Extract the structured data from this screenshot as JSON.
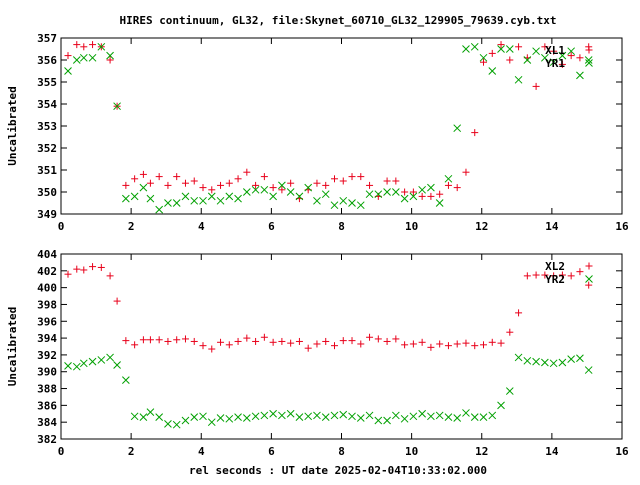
{
  "title": "HIRES continuum, GL32, file:Skynet_60710_GL32_129905_79639.cyb.txt",
  "xlabel": "rel seconds : UT date 2025-02-04T10:33:02.000",
  "colors": {
    "red": "#e8001a",
    "green": "#00a000"
  },
  "chart_data": [
    {
      "type": "scatter",
      "ylabel": "Uncalibrated",
      "xlim": [
        0,
        16
      ],
      "ylim": [
        349,
        357
      ],
      "xticks": [
        0,
        2,
        4,
        6,
        8,
        10,
        12,
        14,
        16
      ],
      "yticks": [
        349,
        350,
        351,
        352,
        353,
        354,
        355,
        356,
        357
      ],
      "legend_placement": "top-right",
      "series": [
        {
          "name": "XL1",
          "marker": "plus",
          "color": "#e8001a",
          "x": [
            0.2,
            0.45,
            0.65,
            0.9,
            1.15,
            1.4,
            1.6,
            1.85,
            2.1,
            2.35,
            2.55,
            2.8,
            3.05,
            3.3,
            3.55,
            3.8,
            4.05,
            4.3,
            4.55,
            4.8,
            5.05,
            5.3,
            5.55,
            5.8,
            6.05,
            6.3,
            6.55,
            6.8,
            7.05,
            7.3,
            7.55,
            7.8,
            8.05,
            8.3,
            8.55,
            8.8,
            9.05,
            9.3,
            9.55,
            9.8,
            10.05,
            10.3,
            10.55,
            10.8,
            11.05,
            11.3,
            11.55,
            11.8,
            12.05,
            12.3,
            12.55,
            12.8,
            13.05,
            13.3,
            13.55,
            13.8,
            14.05,
            14.3,
            14.55,
            14.8,
            15.05
          ],
          "y": [
            356.2,
            356.7,
            356.6,
            356.7,
            356.6,
            356.0,
            353.9,
            350.3,
            350.6,
            350.8,
            350.4,
            350.7,
            350.3,
            350.7,
            350.4,
            350.5,
            350.2,
            350.1,
            350.3,
            350.4,
            350.6,
            350.9,
            350.3,
            350.7,
            350.2,
            350.1,
            350.4,
            349.7,
            350.1,
            350.4,
            350.3,
            350.6,
            350.5,
            350.7,
            350.7,
            350.3,
            349.8,
            350.5,
            350.5,
            350.0,
            350.0,
            349.8,
            349.8,
            349.9,
            350.3,
            350.2,
            350.9,
            352.7,
            355.9,
            356.3,
            356.7,
            356.0,
            356.6,
            356.1,
            354.8,
            356.6,
            356.4,
            355.8,
            356.2,
            356.1,
            356.6
          ]
        },
        {
          "name": "YR1",
          "marker": "cross",
          "color": "#00a000",
          "x": [
            0.2,
            0.45,
            0.65,
            0.9,
            1.15,
            1.4,
            1.6,
            1.85,
            2.1,
            2.35,
            2.55,
            2.8,
            3.05,
            3.3,
            3.55,
            3.8,
            4.05,
            4.3,
            4.55,
            4.8,
            5.05,
            5.3,
            5.55,
            5.8,
            6.05,
            6.3,
            6.55,
            6.8,
            7.05,
            7.3,
            7.55,
            7.8,
            8.05,
            8.3,
            8.55,
            8.8,
            9.05,
            9.3,
            9.55,
            9.8,
            10.05,
            10.3,
            10.55,
            10.8,
            11.05,
            11.3,
            11.55,
            11.8,
            12.05,
            12.3,
            12.55,
            12.8,
            13.05,
            13.3,
            13.55,
            13.8,
            14.05,
            14.3,
            14.55,
            14.8,
            15.05
          ],
          "y": [
            355.5,
            356.0,
            356.1,
            356.1,
            356.6,
            356.2,
            353.9,
            349.7,
            349.8,
            350.2,
            349.7,
            349.2,
            349.5,
            349.5,
            349.8,
            349.6,
            349.6,
            349.8,
            349.6,
            349.8,
            349.7,
            350.0,
            350.1,
            350.1,
            349.8,
            350.3,
            350.0,
            349.8,
            350.2,
            349.6,
            349.9,
            349.4,
            349.6,
            349.5,
            349.4,
            349.9,
            349.9,
            350.0,
            350.0,
            349.7,
            349.8,
            350.1,
            350.2,
            349.5,
            350.6,
            352.9,
            356.5,
            356.6,
            356.1,
            355.5,
            356.5,
            356.5,
            355.1,
            356.0,
            356.4,
            356.1,
            355.9,
            356.2,
            356.4,
            355.3,
            356.0
          ]
        }
      ]
    },
    {
      "type": "scatter",
      "ylabel": "Uncalibrated",
      "xlim": [
        0,
        16
      ],
      "ylim": [
        382,
        404
      ],
      "xticks": [
        0,
        2,
        4,
        6,
        8,
        10,
        12,
        14,
        16
      ],
      "yticks": [
        382,
        384,
        386,
        388,
        390,
        392,
        394,
        396,
        398,
        400,
        402,
        404
      ],
      "legend_placement": "top-right",
      "series": [
        {
          "name": "XL2",
          "marker": "plus",
          "color": "#e8001a",
          "x": [
            0.2,
            0.45,
            0.65,
            0.9,
            1.15,
            1.4,
            1.6,
            1.85,
            2.1,
            2.35,
            2.55,
            2.8,
            3.05,
            3.3,
            3.55,
            3.8,
            4.05,
            4.3,
            4.55,
            4.8,
            5.05,
            5.3,
            5.55,
            5.8,
            6.05,
            6.3,
            6.55,
            6.8,
            7.05,
            7.3,
            7.55,
            7.8,
            8.05,
            8.3,
            8.55,
            8.8,
            9.05,
            9.3,
            9.55,
            9.8,
            10.05,
            10.3,
            10.55,
            10.8,
            11.05,
            11.3,
            11.55,
            11.8,
            12.05,
            12.3,
            12.55,
            12.8,
            13.05,
            13.3,
            13.55,
            13.8,
            14.05,
            14.3,
            14.55,
            14.8,
            15.05
          ],
          "y": [
            401.6,
            402.2,
            402.1,
            402.5,
            402.4,
            401.4,
            398.4,
            393.7,
            393.2,
            393.8,
            393.8,
            393.8,
            393.6,
            393.8,
            393.9,
            393.6,
            393.1,
            392.7,
            393.5,
            393.2,
            393.6,
            394.0,
            393.6,
            394.1,
            393.5,
            393.6,
            393.4,
            393.6,
            392.8,
            393.3,
            393.6,
            393.1,
            393.7,
            393.7,
            393.3,
            394.1,
            393.9,
            393.6,
            393.9,
            393.2,
            393.3,
            393.5,
            392.9,
            393.3,
            393.1,
            393.3,
            393.4,
            393.1,
            393.2,
            393.5,
            393.4,
            394.7,
            397.0,
            401.4,
            401.5,
            401.5,
            401.4,
            401.5,
            401.4,
            401.9,
            400.3
          ]
        },
        {
          "name": "YR2",
          "marker": "cross",
          "color": "#00a000",
          "x": [
            0.2,
            0.45,
            0.65,
            0.9,
            1.15,
            1.4,
            1.6,
            1.85,
            2.1,
            2.35,
            2.55,
            2.8,
            3.05,
            3.3,
            3.55,
            3.8,
            4.05,
            4.3,
            4.55,
            4.8,
            5.05,
            5.3,
            5.55,
            5.8,
            6.05,
            6.3,
            6.55,
            6.8,
            7.05,
            7.3,
            7.55,
            7.8,
            8.05,
            8.3,
            8.55,
            8.8,
            9.05,
            9.3,
            9.55,
            9.8,
            10.05,
            10.3,
            10.55,
            10.8,
            11.05,
            11.3,
            11.55,
            11.8,
            12.05,
            12.3,
            12.55,
            12.8,
            13.05,
            13.3,
            13.55,
            13.8,
            14.05,
            14.3,
            14.55,
            14.8,
            15.05
          ],
          "y": [
            390.7,
            390.6,
            391.0,
            391.2,
            391.4,
            391.7,
            390.8,
            389.0,
            384.7,
            384.6,
            385.2,
            384.6,
            383.8,
            383.7,
            384.2,
            384.6,
            384.7,
            384.0,
            384.5,
            384.4,
            384.6,
            384.5,
            384.7,
            384.8,
            385.0,
            384.8,
            385.0,
            384.6,
            384.7,
            384.8,
            384.6,
            384.8,
            384.9,
            384.7,
            384.5,
            384.8,
            384.2,
            384.2,
            384.8,
            384.4,
            384.7,
            385.0,
            384.7,
            384.8,
            384.6,
            384.5,
            385.1,
            384.6,
            384.6,
            384.8,
            386.0,
            387.7,
            391.7,
            391.3,
            391.2,
            391.1,
            391.0,
            391.1,
            391.5,
            391.6,
            390.2
          ]
        }
      ]
    }
  ]
}
